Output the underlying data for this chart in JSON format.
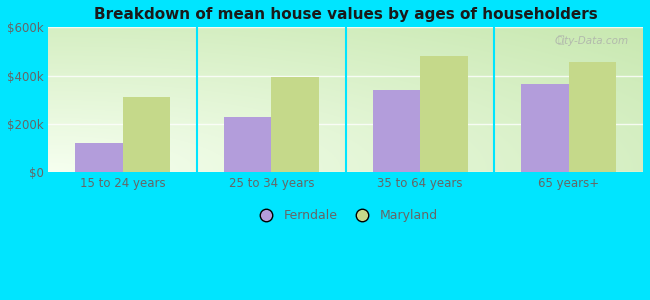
{
  "title": "Breakdown of mean house values by ages of householders",
  "categories": [
    "15 to 24 years",
    "25 to 34 years",
    "35 to 64 years",
    "65 years+"
  ],
  "ferndale_values": [
    120000,
    230000,
    340000,
    365000
  ],
  "maryland_values": [
    310000,
    395000,
    480000,
    455000
  ],
  "ferndale_color": "#b39ddb",
  "maryland_color": "#c5d98a",
  "background_color": "#00e5ff",
  "ylim": [
    0,
    600000
  ],
  "yticks": [
    0,
    200000,
    400000,
    600000
  ],
  "ytick_labels": [
    "$0",
    "$200k",
    "$400k",
    "$600k"
  ],
  "bar_width": 0.32,
  "legend_ferndale": "Ferndale",
  "legend_maryland": "Maryland",
  "watermark": "City-Data.com",
  "title_fontsize": 11,
  "tick_fontsize": 8.5,
  "legend_fontsize": 9,
  "grid_color": "#d0e8c8",
  "tick_color": "#666666"
}
